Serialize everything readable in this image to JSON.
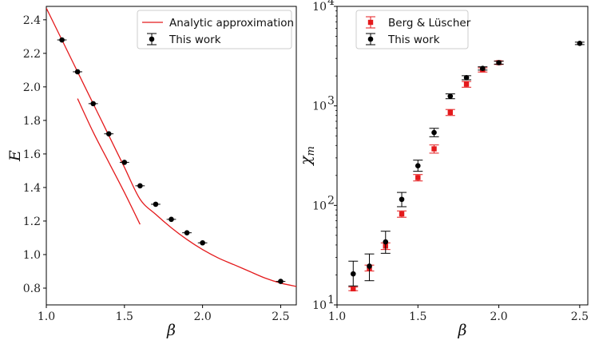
{
  "chart_data": [
    {
      "type": "scatter",
      "xlabel": "β",
      "ylabel": "E",
      "xlim": [
        1.0,
        2.6
      ],
      "ylim": [
        0.7,
        2.48
      ],
      "xticks": [
        "1.0",
        "1.5",
        "2.0",
        "2.5"
      ],
      "yticks": [
        "0.8",
        "1.0",
        "1.2",
        "1.4",
        "1.6",
        "1.8",
        "2.0",
        "2.2",
        "2.4"
      ],
      "grid": false,
      "legend_position": "top-right",
      "series": [
        {
          "name": "Analytic approximation",
          "kind": "line",
          "color": "#e41a1c",
          "curves": [
            [
              [
                1.0,
                2.47
              ],
              [
                1.1,
                2.28
              ],
              [
                1.2,
                2.09
              ],
              [
                1.3,
                1.9
              ],
              [
                1.4,
                1.71
              ],
              [
                1.5,
                1.52
              ],
              [
                1.6,
                1.33
              ],
              [
                1.7,
                1.24
              ],
              [
                1.8,
                1.16
              ],
              [
                1.9,
                1.09
              ],
              [
                2.0,
                1.03
              ],
              [
                2.1,
                0.98
              ],
              [
                2.2,
                0.94
              ],
              [
                2.3,
                0.9
              ],
              [
                2.4,
                0.86
              ],
              [
                2.5,
                0.83
              ],
              [
                2.6,
                0.81
              ]
            ],
            [
              [
                1.2,
                1.93
              ],
              [
                1.3,
                1.73
              ],
              [
                1.4,
                1.55
              ],
              [
                1.5,
                1.37
              ],
              [
                1.6,
                1.18
              ]
            ]
          ]
        },
        {
          "name": "This work",
          "kind": "errorbar",
          "color": "#000000",
          "points": [
            {
              "x": 1.1,
              "y": 2.28,
              "xerr": 0.03
            },
            {
              "x": 1.2,
              "y": 2.09,
              "xerr": 0.03
            },
            {
              "x": 1.3,
              "y": 1.9,
              "xerr": 0.03
            },
            {
              "x": 1.4,
              "y": 1.72,
              "xerr": 0.03
            },
            {
              "x": 1.5,
              "y": 1.55,
              "xerr": 0.03
            },
            {
              "x": 1.6,
              "y": 1.41,
              "xerr": 0.03
            },
            {
              "x": 1.7,
              "y": 1.3,
              "xerr": 0.03
            },
            {
              "x": 1.8,
              "y": 1.21,
              "xerr": 0.03
            },
            {
              "x": 1.9,
              "y": 1.13,
              "xerr": 0.03
            },
            {
              "x": 2.0,
              "y": 1.07,
              "xerr": 0.03
            },
            {
              "x": 2.5,
              "y": 0.84,
              "xerr": 0.03
            }
          ]
        }
      ]
    },
    {
      "type": "scatter",
      "xlabel": "β",
      "ylabel": "χm",
      "yscale": "log",
      "xlim": [
        1.0,
        2.55
      ],
      "ylim": [
        10,
        10000
      ],
      "xticks": [
        "1.0",
        "1.5",
        "2.0",
        "2.5"
      ],
      "yticks": [
        "10",
        "10",
        "10",
        "10"
      ],
      "ytick_exponents": [
        "1",
        "2",
        "3",
        "4"
      ],
      "grid": false,
      "legend_position": "top-left",
      "series": [
        {
          "name": "Berg & Lüscher",
          "kind": "errorbar",
          "color": "#e41a1c",
          "marker": "square",
          "points": [
            {
              "x": 1.1,
              "y": 14.5,
              "yerr": [
                0.6,
                0.6
              ]
            },
            {
              "x": 1.2,
              "y": 23.5,
              "yerr": [
                1.6,
                1.6
              ]
            },
            {
              "x": 1.3,
              "y": 39,
              "yerr": [
                3,
                3
              ]
            },
            {
              "x": 1.4,
              "y": 82,
              "yerr": [
                6,
                6
              ]
            },
            {
              "x": 1.5,
              "y": 190,
              "yerr": [
                14,
                14
              ]
            },
            {
              "x": 1.6,
              "y": 370,
              "yerr": [
                35,
                35
              ]
            },
            {
              "x": 1.7,
              "y": 860,
              "yerr": [
                60,
                60
              ]
            },
            {
              "x": 1.8,
              "y": 1650,
              "yerr": [
                110,
                110
              ]
            },
            {
              "x": 1.9,
              "y": 2300,
              "yerr": [
                110,
                110
              ]
            },
            {
              "x": 2.0,
              "y": 2720,
              "yerr": [
                110,
                110
              ]
            }
          ]
        },
        {
          "name": "This work",
          "kind": "errorbar",
          "color": "#000000",
          "marker": "circle",
          "points": [
            {
              "x": 1.1,
              "y": 20.5,
              "yerr": [
                5,
                7
              ]
            },
            {
              "x": 1.2,
              "y": 24.5,
              "yerr": [
                7,
                8
              ]
            },
            {
              "x": 1.3,
              "y": 43,
              "yerr": [
                10,
                12
              ]
            },
            {
              "x": 1.4,
              "y": 115,
              "yerr": [
                18,
                20
              ]
            },
            {
              "x": 1.5,
              "y": 250,
              "yerr": [
                30,
                35
              ]
            },
            {
              "x": 1.6,
              "y": 540,
              "yerr": [
                50,
                55
              ]
            },
            {
              "x": 1.7,
              "y": 1250,
              "yerr": [
                70,
                70
              ]
            },
            {
              "x": 1.8,
              "y": 1920,
              "yerr": [
                90,
                90
              ]
            },
            {
              "x": 1.9,
              "y": 2380,
              "yerr": [
                90,
                90
              ]
            },
            {
              "x": 2.0,
              "y": 2720,
              "yerr": [
                90,
                90
              ]
            },
            {
              "x": 2.5,
              "y": 4250,
              "yerr": [
                120,
                120
              ]
            }
          ]
        }
      ]
    }
  ]
}
